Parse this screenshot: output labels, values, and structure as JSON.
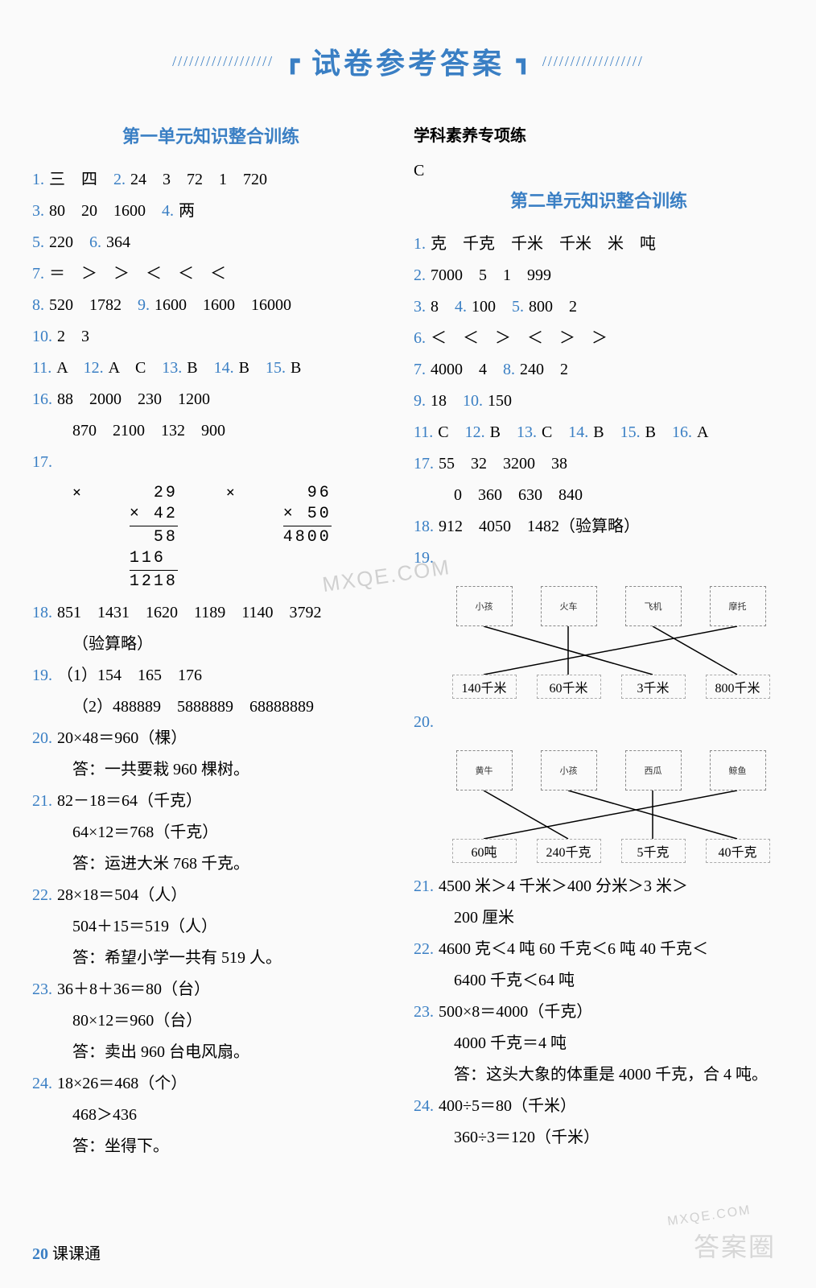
{
  "header": {
    "slashes_left": "//////////////////",
    "bracket_left": "┏",
    "title": "试卷参考答案",
    "bracket_right": "┓",
    "slashes_right": "//////////////////"
  },
  "colors": {
    "blue": "#3a7fc4",
    "black": "#000000",
    "bg": "#fafafa"
  },
  "left": {
    "section_title": "第一单元知识整合训练",
    "lines": [
      {
        "parts": [
          [
            "1.",
            "num"
          ],
          [
            "三　四　",
            "txt"
          ],
          [
            "2.",
            "num"
          ],
          [
            "24　3　72　1　720",
            "txt"
          ]
        ]
      },
      {
        "parts": [
          [
            "3.",
            "num"
          ],
          [
            "80　20　1600　",
            "txt"
          ],
          [
            "4.",
            "num"
          ],
          [
            "两",
            "txt"
          ]
        ]
      },
      {
        "parts": [
          [
            "5.",
            "num"
          ],
          [
            "220　",
            "txt"
          ],
          [
            "6.",
            "num"
          ],
          [
            "364",
            "txt"
          ]
        ]
      },
      {
        "parts": [
          [
            "7.",
            "num"
          ],
          [
            "＝　＞　＞　＜　＜　＜",
            "txt"
          ]
        ]
      },
      {
        "parts": [
          [
            "8.",
            "num"
          ],
          [
            "520　1782　",
            "txt"
          ],
          [
            "9.",
            "num"
          ],
          [
            "1600　1600　16000",
            "txt"
          ]
        ]
      },
      {
        "parts": [
          [
            "10.",
            "num"
          ],
          [
            "2　3",
            "txt"
          ]
        ]
      },
      {
        "parts": [
          [
            "11.",
            "num"
          ],
          [
            "A　",
            "txt"
          ],
          [
            "12.",
            "num"
          ],
          [
            "A　C　",
            "txt"
          ],
          [
            "13.",
            "num"
          ],
          [
            "B　",
            "txt"
          ],
          [
            "14.",
            "num"
          ],
          [
            "B　",
            "txt"
          ],
          [
            "15.",
            "num"
          ],
          [
            "B",
            "txt"
          ]
        ]
      },
      {
        "parts": [
          [
            "16.",
            "num"
          ],
          [
            "88　2000　230　1200",
            "txt"
          ]
        ]
      },
      {
        "parts": [
          [
            "",
            ""
          ],
          [
            "870　2100　132　900",
            "txt"
          ]
        ],
        "indent": true
      },
      {
        "parts": [
          [
            "17.",
            "num"
          ],
          [
            "",
            "txt"
          ]
        ],
        "calc": true
      },
      {
        "parts": [
          [
            "18.",
            "num"
          ],
          [
            "851　1431　1620　1189　1140　3792",
            "txt"
          ]
        ]
      },
      {
        "parts": [
          [
            "",
            ""
          ],
          [
            "（验算略）",
            "txt"
          ]
        ],
        "indent": true
      },
      {
        "parts": [
          [
            "19.",
            "num"
          ],
          [
            "（1）154　165　176",
            "txt"
          ]
        ]
      },
      {
        "parts": [
          [
            "",
            ""
          ],
          [
            "（2）488889　5888889　68888889",
            "txt"
          ]
        ],
        "indent": true
      },
      {
        "parts": [
          [
            "20.",
            "num"
          ],
          [
            "20×48＝960（棵）",
            "txt"
          ]
        ]
      },
      {
        "parts": [
          [
            "",
            ""
          ],
          [
            "答：一共要栽 960 棵树。",
            "txt"
          ]
        ],
        "indent": true
      },
      {
        "parts": [
          [
            "21.",
            "num"
          ],
          [
            "82－18＝64（千克）",
            "txt"
          ]
        ]
      },
      {
        "parts": [
          [
            "",
            ""
          ],
          [
            "64×12＝768（千克）",
            "txt"
          ]
        ],
        "indent": true
      },
      {
        "parts": [
          [
            "",
            ""
          ],
          [
            "答：运进大米 768 千克。",
            "txt"
          ]
        ],
        "indent": true
      },
      {
        "parts": [
          [
            "22.",
            "num"
          ],
          [
            "28×18＝504（人）",
            "txt"
          ]
        ]
      },
      {
        "parts": [
          [
            "",
            ""
          ],
          [
            "504＋15＝519（人）",
            "txt"
          ]
        ],
        "indent": true
      },
      {
        "parts": [
          [
            "",
            ""
          ],
          [
            "答：希望小学一共有 519 人。",
            "txt"
          ]
        ],
        "indent": true
      },
      {
        "parts": [
          [
            "23.",
            "num"
          ],
          [
            "36＋8＋36＝80（台）",
            "txt"
          ]
        ]
      },
      {
        "parts": [
          [
            "",
            ""
          ],
          [
            "80×12＝960（台）",
            "txt"
          ]
        ],
        "indent": true
      },
      {
        "parts": [
          [
            "",
            ""
          ],
          [
            "答：卖出 960 台电风扇。",
            "txt"
          ]
        ],
        "indent": true
      },
      {
        "parts": [
          [
            "24.",
            "num"
          ],
          [
            "18×26＝468（个）",
            "txt"
          ]
        ]
      },
      {
        "parts": [
          [
            "",
            ""
          ],
          [
            "468＞436",
            "txt"
          ]
        ],
        "indent": true
      },
      {
        "parts": [
          [
            "",
            ""
          ],
          [
            "答：坐得下。",
            "txt"
          ]
        ],
        "indent": true
      }
    ],
    "calc1": {
      "prefix": "×",
      "rows": [
        "  29",
        "× 42",
        "hr",
        "  58",
        "116 ",
        "hr",
        "1218"
      ]
    },
    "calc2": {
      "prefix": "×",
      "rows": [
        "  96",
        "× 50",
        "hr",
        "4800"
      ]
    }
  },
  "right": {
    "sub_title": "学科素养专项练",
    "sub_answer": "C",
    "section_title": "第二单元知识整合训练",
    "lines": [
      {
        "parts": [
          [
            "1.",
            "num"
          ],
          [
            "克　千克　千米　千米　米　吨",
            "txt"
          ]
        ]
      },
      {
        "parts": [
          [
            "2.",
            "num"
          ],
          [
            "7000　5　1　999",
            "txt"
          ]
        ]
      },
      {
        "parts": [
          [
            "3.",
            "num"
          ],
          [
            "8　",
            "txt"
          ],
          [
            "4.",
            "num"
          ],
          [
            "100　",
            "txt"
          ],
          [
            "5.",
            "num"
          ],
          [
            "800　2",
            "txt"
          ]
        ]
      },
      {
        "parts": [
          [
            "6.",
            "num"
          ],
          [
            "＜　＜　＞　＜　＞　＞",
            "txt"
          ]
        ]
      },
      {
        "parts": [
          [
            "7.",
            "num"
          ],
          [
            "4000　4　",
            "txt"
          ],
          [
            "8.",
            "num"
          ],
          [
            "240　2",
            "txt"
          ]
        ]
      },
      {
        "parts": [
          [
            "9.",
            "num"
          ],
          [
            "18　",
            "txt"
          ],
          [
            "10.",
            "num"
          ],
          [
            "150",
            "txt"
          ]
        ]
      },
      {
        "parts": [
          [
            "11.",
            "num"
          ],
          [
            "C　",
            "txt"
          ],
          [
            "12.",
            "num"
          ],
          [
            "B　",
            "txt"
          ],
          [
            "13.",
            "num"
          ],
          [
            "C　",
            "txt"
          ],
          [
            "14.",
            "num"
          ],
          [
            "B　",
            "txt"
          ],
          [
            "15.",
            "num"
          ],
          [
            "B　",
            "txt"
          ],
          [
            "16.",
            "num"
          ],
          [
            "A",
            "txt"
          ]
        ]
      },
      {
        "parts": [
          [
            "17.",
            "num"
          ],
          [
            "55　32　3200　38",
            "txt"
          ]
        ]
      },
      {
        "parts": [
          [
            "",
            ""
          ],
          [
            "0　360　630　840",
            "txt"
          ]
        ],
        "indent": true
      },
      {
        "parts": [
          [
            "18.",
            "num"
          ],
          [
            "912　4050　1482（验算略）",
            "txt"
          ]
        ]
      },
      {
        "parts": [
          [
            "19.",
            "num"
          ],
          [
            "",
            "txt"
          ]
        ],
        "diagram": 1
      },
      {
        "parts": [
          [
            "20.",
            "num"
          ],
          [
            "",
            "txt"
          ]
        ],
        "diagram": 2
      },
      {
        "parts": [
          [
            "21.",
            "num"
          ],
          [
            "4500 米＞4 千米＞400 分米＞3 米＞",
            "txt"
          ]
        ]
      },
      {
        "parts": [
          [
            "",
            ""
          ],
          [
            "200 厘米",
            "txt"
          ]
        ],
        "indent": true
      },
      {
        "parts": [
          [
            "22.",
            "num"
          ],
          [
            "4600 克＜4 吨 60 千克＜6 吨 40 千克＜",
            "txt"
          ]
        ]
      },
      {
        "parts": [
          [
            "",
            ""
          ],
          [
            "6400 千克＜64 吨",
            "txt"
          ]
        ],
        "indent": true
      },
      {
        "parts": [
          [
            "23.",
            "num"
          ],
          [
            "500×8＝4000（千克）",
            "txt"
          ]
        ]
      },
      {
        "parts": [
          [
            "",
            ""
          ],
          [
            "4000 千克＝4 吨",
            "txt"
          ]
        ],
        "indent": true
      },
      {
        "parts": [
          [
            "",
            ""
          ],
          [
            "答：这头大象的体重是 4000 千克，合 4 吨。",
            "txt"
          ]
        ],
        "indent": true
      },
      {
        "parts": [
          [
            "24.",
            "num"
          ],
          [
            "400÷5＝80（千米）",
            "txt"
          ]
        ]
      },
      {
        "parts": [
          [
            "",
            ""
          ],
          [
            "360÷3＝120（千米）",
            "txt"
          ]
        ],
        "indent": true
      }
    ],
    "diagram1": {
      "top_icons": [
        "小孩",
        "火车",
        "飞机",
        "摩托"
      ],
      "bottom_labels": [
        "140千米",
        "60千米",
        "3千米",
        "800千米"
      ],
      "connections": [
        [
          0,
          2
        ],
        [
          1,
          1
        ],
        [
          2,
          3
        ],
        [
          3,
          0
        ]
      ]
    },
    "diagram2": {
      "top_icons": [
        "黄牛",
        "小孩",
        "西瓜",
        "鲸鱼"
      ],
      "bottom_labels": [
        "60吨",
        "240千克",
        "5千克",
        "40千克"
      ],
      "connections": [
        [
          0,
          1
        ],
        [
          1,
          3
        ],
        [
          2,
          2
        ],
        [
          3,
          0
        ]
      ]
    }
  },
  "footer": {
    "page": "20",
    "text": "课课通"
  },
  "watermarks": {
    "wm1": "MXQE.COM",
    "wm2": "MXQE.COM",
    "wm3": "答案圈"
  }
}
